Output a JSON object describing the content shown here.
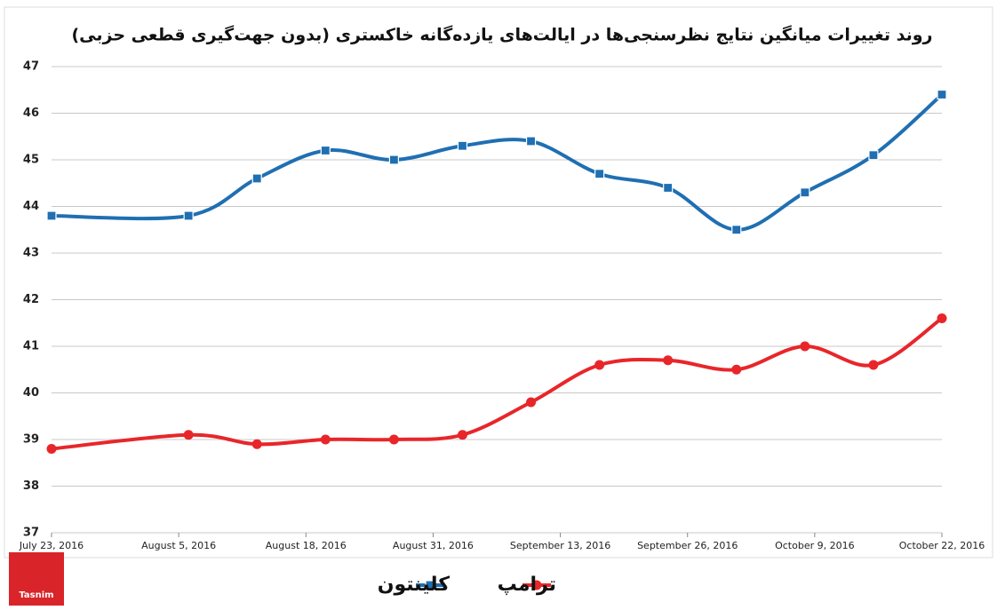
{
  "chart_data": {
    "type": "line",
    "title": "روند تغییرات میانگین نتایج نظرسنجی‌ها در ایالت‌های یازده‌گانه خاکستری (بدون جهت‌گیری قطعی حزبی)",
    "x": [
      "2016-07-23",
      "2016-08-06",
      "2016-08-13",
      "2016-08-20",
      "2016-08-27",
      "2016-09-03",
      "2016-09-10",
      "2016-09-17",
      "2016-09-24",
      "2016-10-01",
      "2016-10-08",
      "2016-10-15",
      "2016-10-22"
    ],
    "series": [
      {
        "name": "کلینتون",
        "color": "#1f6fb2",
        "marker": "square",
        "values": [
          43.8,
          43.8,
          44.6,
          45.2,
          45.0,
          45.3,
          45.4,
          44.7,
          44.4,
          43.5,
          44.3,
          45.1,
          46.4
        ]
      },
      {
        "name": "ترامپ",
        "color": "#e8262a",
        "marker": "circle",
        "values": [
          38.8,
          39.1,
          38.9,
          39.0,
          39.0,
          39.1,
          39.8,
          40.6,
          40.7,
          40.5,
          41.0,
          40.6,
          41.6
        ]
      }
    ],
    "xlim": [
      "2016-07-23",
      "2016-10-22"
    ],
    "xticks": [
      {
        "value": "2016-07-23",
        "label": "July 23, 2016"
      },
      {
        "value": "2016-08-05",
        "label": "August 5, 2016"
      },
      {
        "value": "2016-08-18",
        "label": "August 18, 2016"
      },
      {
        "value": "2016-08-31",
        "label": "August 31, 2016"
      },
      {
        "value": "2016-09-13",
        "label": "September 13, 2016"
      },
      {
        "value": "2016-09-26",
        "label": "September 26, 2016"
      },
      {
        "value": "2016-10-09",
        "label": "October 9, 2016"
      },
      {
        "value": "2016-10-22",
        "label": "October 22, 2016"
      }
    ],
    "ylim": [
      37,
      47
    ],
    "yticks": [
      37,
      38,
      39,
      40,
      41,
      42,
      43,
      44,
      45,
      46,
      47
    ],
    "grid": true,
    "legend": "bottom"
  },
  "logo": "Tasnim"
}
